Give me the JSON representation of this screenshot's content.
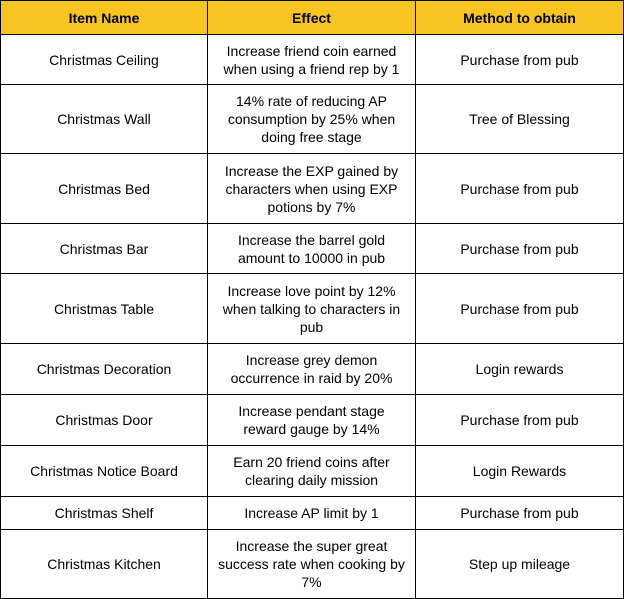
{
  "table": {
    "headers": [
      "Item Name",
      "Effect",
      "Method to obtain"
    ],
    "rows": [
      [
        "Christmas Ceiling",
        "Increase friend coin earned when using a friend rep by 1",
        "Purchase from pub"
      ],
      [
        "Christmas Wall",
        "14% rate of reducing AP consumption by 25% when doing free stage",
        "Tree of Blessing"
      ],
      [
        "Christmas Bed",
        "Increase the EXP gained by characters when using EXP potions by 7%",
        "Purchase from pub"
      ],
      [
        "Christmas Bar",
        "Increase the barrel gold amount to 10000 in pub",
        "Purchase from pub"
      ],
      [
        "Christmas Table",
        "Increase love point by 12% when talking to characters in pub",
        "Purchase from pub"
      ],
      [
        "Christmas Decoration",
        "Increase grey demon occurrence in raid by 20%",
        "Login rewards"
      ],
      [
        "Christmas Door",
        "Increase pendant stage reward gauge by 14%",
        "Purchase from pub"
      ],
      [
        "Christmas Notice Board",
        "Earn 20 friend coins after clearing daily mission",
        "Login Rewards"
      ],
      [
        "Christmas Shelf",
        "Increase AP limit by 1",
        "Purchase from pub"
      ],
      [
        "Christmas Kitchen",
        "Increase the super great success rate when cooking by 7%",
        "Step up mileage"
      ]
    ]
  },
  "colors": {
    "header_background": "#f7c421",
    "border": "#000000"
  }
}
